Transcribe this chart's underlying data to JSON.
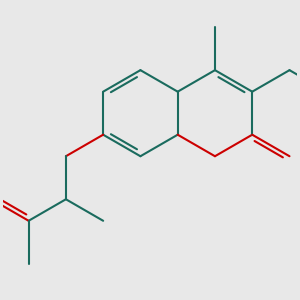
{
  "background_color": "#e8e8e8",
  "bond_color": "#1a6b5e",
  "oxygen_color": "#cc0000",
  "line_width": 1.5,
  "figsize": [
    3.0,
    3.0
  ],
  "dpi": 100
}
